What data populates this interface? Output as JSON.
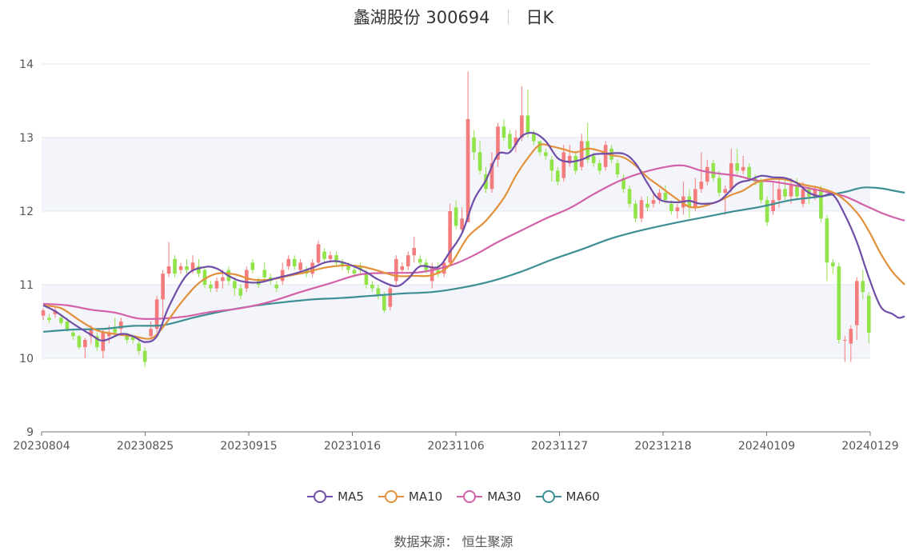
{
  "header": {
    "title": "蠡湖股份 300694",
    "subtitle": "日K"
  },
  "source": "数据来源： 恒生聚源",
  "colors": {
    "up": "#f47c7c",
    "down": "#91e34a",
    "grid": "#e0e6f1",
    "band": "#f4f5fb"
  },
  "chart_data": {
    "type": "candlestick",
    "y_ticks": [
      "9",
      "10",
      "11",
      "12",
      "13",
      "14"
    ],
    "ylim": [
      9,
      14
    ],
    "x_ticks": [
      "20230804",
      "20230825",
      "20230915",
      "20231016",
      "20231106",
      "20231127",
      "20231218",
      "20240109",
      "20240129"
    ],
    "legend": [
      {
        "name": "MA5",
        "color": "#6f4ea8"
      },
      {
        "name": "MA10",
        "color": "#e2913a"
      },
      {
        "name": "MA30",
        "color": "#d361a8"
      },
      {
        "name": "MA60",
        "color": "#3d8f93"
      }
    ],
    "candles": [
      [
        10.58,
        10.65,
        10.52,
        10.68
      ],
      [
        10.55,
        10.52,
        10.48,
        10.6
      ],
      [
        10.6,
        10.65,
        10.55,
        10.7
      ],
      [
        10.55,
        10.48,
        10.45,
        10.6
      ],
      [
        10.5,
        10.4,
        10.36,
        10.55
      ],
      [
        10.35,
        10.3,
        10.25,
        10.4
      ],
      [
        10.3,
        10.15,
        10.12,
        10.32
      ],
      [
        10.15,
        10.25,
        10.0,
        10.28
      ],
      [
        10.3,
        10.4,
        10.2,
        10.45
      ],
      [
        10.3,
        10.15,
        10.1,
        10.35
      ],
      [
        10.1,
        10.35,
        10.0,
        10.4
      ],
      [
        10.3,
        10.35,
        10.2,
        10.45
      ],
      [
        10.4,
        10.35,
        10.3,
        10.55
      ],
      [
        10.4,
        10.5,
        10.3,
        10.55
      ],
      [
        10.3,
        10.25,
        10.2,
        10.35
      ],
      [
        10.3,
        10.25,
        10.2,
        10.32
      ],
      [
        10.2,
        10.1,
        10.05,
        10.25
      ],
      [
        10.1,
        9.95,
        9.88,
        10.15
      ],
      [
        10.3,
        10.4,
        10.25,
        10.5
      ],
      [
        10.4,
        10.8,
        10.35,
        10.85
      ],
      [
        10.8,
        11.15,
        10.55,
        11.2
      ],
      [
        11.15,
        11.25,
        11.1,
        11.58
      ],
      [
        11.35,
        11.15,
        11.1,
        11.4
      ],
      [
        11.2,
        11.25,
        11.15,
        11.3
      ],
      [
        11.25,
        11.2,
        11.15,
        11.35
      ],
      [
        11.2,
        11.3,
        11.15,
        11.4
      ],
      [
        11.25,
        11.15,
        11.1,
        11.35
      ],
      [
        11.2,
        11.0,
        10.95,
        11.25
      ],
      [
        11.0,
        10.95,
        10.9,
        11.05
      ],
      [
        10.95,
        11.05,
        10.9,
        11.1
      ],
      [
        11.05,
        11.1,
        10.95,
        11.2
      ],
      [
        11.2,
        11.05,
        11.0,
        11.25
      ],
      [
        11.05,
        10.95,
        10.85,
        11.1
      ],
      [
        10.95,
        10.85,
        10.8,
        11.0
      ],
      [
        10.95,
        11.2,
        10.9,
        11.25
      ],
      [
        11.3,
        11.2,
        11.15,
        11.35
      ],
      [
        11.05,
        11.0,
        10.95,
        11.1
      ],
      [
        11.2,
        11.1,
        11.05,
        11.3
      ],
      [
        11.1,
        11.05,
        11.0,
        11.15
      ],
      [
        11.0,
        10.95,
        10.9,
        11.05
      ],
      [
        11.05,
        11.2,
        11.0,
        11.3
      ],
      [
        11.25,
        11.35,
        11.2,
        11.4
      ],
      [
        11.35,
        11.25,
        11.2,
        11.4
      ],
      [
        11.2,
        11.3,
        11.15,
        11.35
      ],
      [
        11.2,
        11.15,
        11.1,
        11.25
      ],
      [
        11.15,
        11.3,
        11.1,
        11.35
      ],
      [
        11.3,
        11.55,
        11.25,
        11.6
      ],
      [
        11.45,
        11.35,
        11.3,
        11.5
      ],
      [
        11.35,
        11.4,
        11.3,
        11.45
      ],
      [
        11.4,
        11.3,
        11.25,
        11.45
      ],
      [
        11.3,
        11.25,
        11.2,
        11.35
      ],
      [
        11.25,
        11.2,
        11.15,
        11.3
      ],
      [
        11.2,
        11.15,
        11.1,
        11.25
      ],
      [
        11.25,
        11.2,
        11.15,
        11.3
      ],
      [
        11.15,
        11.0,
        10.95,
        11.2
      ],
      [
        11.0,
        10.95,
        10.9,
        11.05
      ],
      [
        10.95,
        10.85,
        10.8,
        11.0
      ],
      [
        10.85,
        10.65,
        10.62,
        10.9
      ],
      [
        10.7,
        10.95,
        10.65,
        11.0
      ],
      [
        11.05,
        11.35,
        11.0,
        11.4
      ],
      [
        11.2,
        11.25,
        11.15,
        11.3
      ],
      [
        11.25,
        11.4,
        11.2,
        11.45
      ],
      [
        11.4,
        11.5,
        11.3,
        11.65
      ],
      [
        11.35,
        11.3,
        11.25,
        11.4
      ],
      [
        11.3,
        11.2,
        11.15,
        11.35
      ],
      [
        11.05,
        11.25,
        10.95,
        11.3
      ],
      [
        11.2,
        11.15,
        11.1,
        11.3
      ],
      [
        11.15,
        11.3,
        11.1,
        11.35
      ],
      [
        11.3,
        12.0,
        11.25,
        12.1
      ],
      [
        12.05,
        11.8,
        11.75,
        12.15
      ],
      [
        11.75,
        11.9,
        11.7,
        12.05
      ],
      [
        11.85,
        13.25,
        11.85,
        13.9
      ],
      [
        13.0,
        12.8,
        12.7,
        13.1
      ],
      [
        12.8,
        12.55,
        12.5,
        12.95
      ],
      [
        12.5,
        12.3,
        12.25,
        12.6
      ],
      [
        12.3,
        12.65,
        12.25,
        12.8
      ],
      [
        12.7,
        13.15,
        12.6,
        13.2
      ],
      [
        13.15,
        13.0,
        12.95,
        13.25
      ],
      [
        13.05,
        12.85,
        12.8,
        13.1
      ],
      [
        12.9,
        13.0,
        12.8,
        13.1
      ],
      [
        13.0,
        13.3,
        12.95,
        13.7
      ],
      [
        13.3,
        13.05,
        13.0,
        13.65
      ],
      [
        13.05,
        12.95,
        12.9,
        13.1
      ],
      [
        12.95,
        12.8,
        12.75,
        12.95
      ],
      [
        12.8,
        12.75,
        12.7,
        12.85
      ],
      [
        12.7,
        12.55,
        12.4,
        12.75
      ],
      [
        12.55,
        12.4,
        12.35,
        12.6
      ],
      [
        12.45,
        12.8,
        12.4,
        12.9
      ],
      [
        12.65,
        12.75,
        12.6,
        12.9
      ],
      [
        12.75,
        12.55,
        12.5,
        12.8
      ],
      [
        12.6,
        12.95,
        12.55,
        13.05
      ],
      [
        12.95,
        12.7,
        12.65,
        13.2
      ],
      [
        12.75,
        12.65,
        12.6,
        12.8
      ],
      [
        12.65,
        12.55,
        12.5,
        12.7
      ],
      [
        12.6,
        12.9,
        12.55,
        12.95
      ],
      [
        12.85,
        12.7,
        12.65,
        12.9
      ],
      [
        12.65,
        12.5,
        12.45,
        12.7
      ],
      [
        12.45,
        12.3,
        12.25,
        12.5
      ],
      [
        12.3,
        12.1,
        12.05,
        12.35
      ],
      [
        12.1,
        11.9,
        11.85,
        12.15
      ],
      [
        11.9,
        12.15,
        11.85,
        12.2
      ],
      [
        12.1,
        12.05,
        12.0,
        12.2
      ],
      [
        12.1,
        12.15,
        12.05,
        12.25
      ],
      [
        12.15,
        12.25,
        12.1,
        12.3
      ],
      [
        12.25,
        12.15,
        12.1,
        12.35
      ],
      [
        12.1,
        12.0,
        11.95,
        12.15
      ],
      [
        12.0,
        12.05,
        11.9,
        12.1
      ],
      [
        12.05,
        12.2,
        11.95,
        12.4
      ],
      [
        12.2,
        12.05,
        11.9,
        12.3
      ],
      [
        12.05,
        12.3,
        12.0,
        12.45
      ],
      [
        12.3,
        12.4,
        12.25,
        12.8
      ],
      [
        12.4,
        12.6,
        12.35,
        12.7
      ],
      [
        12.65,
        12.45,
        12.4,
        12.7
      ],
      [
        12.45,
        12.25,
        12.2,
        12.55
      ],
      [
        12.25,
        12.3,
        11.95,
        12.35
      ],
      [
        12.3,
        12.65,
        12.25,
        12.85
      ],
      [
        12.65,
        12.55,
        12.5,
        12.85
      ],
      [
        12.55,
        12.6,
        12.5,
        12.75
      ],
      [
        12.6,
        12.45,
        12.4,
        12.65
      ],
      [
        12.45,
        12.4,
        12.35,
        12.5
      ],
      [
        12.4,
        12.15,
        12.1,
        12.45
      ],
      [
        12.15,
        11.85,
        11.8,
        12.2
      ],
      [
        12.0,
        12.15,
        11.95,
        12.4
      ],
      [
        12.15,
        12.3,
        12.05,
        12.45
      ],
      [
        12.3,
        12.2,
        12.15,
        12.45
      ],
      [
        12.2,
        12.35,
        12.1,
        12.45
      ],
      [
        12.35,
        12.2,
        12.15,
        12.45
      ],
      [
        12.1,
        12.3,
        12.05,
        12.4
      ],
      [
        12.3,
        12.2,
        12.1,
        12.35
      ],
      [
        12.2,
        12.3,
        12.15,
        12.35
      ],
      [
        12.3,
        11.9,
        11.85,
        12.35
      ],
      [
        11.9,
        11.3,
        11.05,
        11.95
      ],
      [
        11.3,
        11.25,
        11.15,
        11.35
      ],
      [
        11.25,
        10.25,
        10.2,
        11.3
      ],
      [
        10.25,
        10.25,
        9.95,
        10.3
      ],
      [
        10.2,
        10.4,
        9.95,
        10.45
      ],
      [
        10.45,
        11.05,
        10.25,
        11.1
      ],
      [
        11.05,
        10.9,
        10.8,
        11.2
      ],
      [
        10.85,
        10.35,
        10.2,
        10.9
      ]
    ],
    "ma5": [
      [
        0,
        10.72
      ],
      [
        2,
        10.64
      ],
      [
        5,
        10.47
      ],
      [
        8,
        10.32
      ],
      [
        10,
        10.24
      ],
      [
        13,
        10.33
      ],
      [
        15,
        10.3
      ],
      [
        17,
        10.22
      ],
      [
        19,
        10.3
      ],
      [
        21,
        10.7
      ],
      [
        24,
        11.13
      ],
      [
        27,
        11.24
      ],
      [
        29,
        11.22
      ],
      [
        31,
        11.12
      ],
      [
        33,
        11.05
      ],
      [
        36,
        11.03
      ],
      [
        39,
        11.09
      ],
      [
        42,
        11.15
      ],
      [
        45,
        11.23
      ],
      [
        47,
        11.3
      ],
      [
        49,
        11.32
      ],
      [
        51,
        11.28
      ],
      [
        54,
        11.17
      ],
      [
        56,
        11.07
      ],
      [
        59,
        10.98
      ],
      [
        61,
        11.08
      ],
      [
        63,
        11.25
      ],
      [
        66,
        11.24
      ],
      [
        68,
        11.45
      ],
      [
        70,
        11.7
      ],
      [
        72,
        12.15
      ],
      [
        74,
        12.42
      ],
      [
        76,
        12.77
      ],
      [
        78,
        12.8
      ],
      [
        80,
        13.02
      ],
      [
        82,
        13.06
      ],
      [
        84,
        12.95
      ],
      [
        86,
        12.72
      ],
      [
        88,
        12.67
      ],
      [
        90,
        12.7
      ],
      [
        92,
        12.77
      ],
      [
        94,
        12.78
      ],
      [
        97,
        12.78
      ],
      [
        99,
        12.65
      ],
      [
        101,
        12.38
      ],
      [
        103,
        12.16
      ],
      [
        106,
        12.12
      ],
      [
        108,
        12.14
      ],
      [
        110,
        12.1
      ],
      [
        113,
        12.14
      ],
      [
        116,
        12.37
      ],
      [
        118,
        12.42
      ],
      [
        120,
        12.48
      ],
      [
        122,
        12.46
      ],
      [
        124,
        12.45
      ],
      [
        126,
        12.38
      ],
      [
        128,
        12.25
      ],
      [
        130,
        12.2
      ],
      [
        132,
        12.22
      ],
      [
        134,
        11.95
      ],
      [
        136,
        11.58
      ],
      [
        138,
        11.1
      ],
      [
        140,
        10.7
      ],
      [
        142,
        10.6
      ],
      [
        143,
        10.55
      ],
      [
        144,
        10.57
      ]
    ],
    "ma10": [
      [
        0,
        10.72
      ],
      [
        3,
        10.68
      ],
      [
        6,
        10.52
      ],
      [
        9,
        10.38
      ],
      [
        12,
        10.33
      ],
      [
        15,
        10.3
      ],
      [
        18,
        10.27
      ],
      [
        20,
        10.42
      ],
      [
        23,
        10.75
      ],
      [
        26,
        11.02
      ],
      [
        29,
        11.15
      ],
      [
        32,
        11.14
      ],
      [
        35,
        11.07
      ],
      [
        38,
        11.07
      ],
      [
        41,
        11.12
      ],
      [
        44,
        11.17
      ],
      [
        47,
        11.23
      ],
      [
        50,
        11.26
      ],
      [
        53,
        11.25
      ],
      [
        56,
        11.19
      ],
      [
        59,
        11.12
      ],
      [
        62,
        11.12
      ],
      [
        65,
        11.13
      ],
      [
        68,
        11.27
      ],
      [
        71,
        11.65
      ],
      [
        74,
        11.87
      ],
      [
        77,
        12.18
      ],
      [
        79,
        12.48
      ],
      [
        81,
        12.72
      ],
      [
        83,
        12.9
      ],
      [
        85,
        12.88
      ],
      [
        87,
        12.84
      ],
      [
        89,
        12.8
      ],
      [
        91,
        12.85
      ],
      [
        93,
        12.82
      ],
      [
        95,
        12.76
      ],
      [
        97,
        12.73
      ],
      [
        99,
        12.62
      ],
      [
        101,
        12.46
      ],
      [
        103,
        12.34
      ],
      [
        106,
        12.16
      ],
      [
        108,
        12.06
      ],
      [
        110,
        12.06
      ],
      [
        113,
        12.14
      ],
      [
        115,
        12.22
      ],
      [
        117,
        12.28
      ],
      [
        119,
        12.38
      ],
      [
        121,
        12.43
      ],
      [
        124,
        12.43
      ],
      [
        127,
        12.36
      ],
      [
        130,
        12.31
      ],
      [
        133,
        12.21
      ],
      [
        136,
        11.98
      ],
      [
        138,
        11.73
      ],
      [
        140,
        11.42
      ],
      [
        142,
        11.17
      ],
      [
        144,
        11.0
      ]
    ],
    "ma30": [
      [
        0,
        10.74
      ],
      [
        4,
        10.72
      ],
      [
        8,
        10.66
      ],
      [
        12,
        10.62
      ],
      [
        16,
        10.54
      ],
      [
        20,
        10.54
      ],
      [
        24,
        10.57
      ],
      [
        28,
        10.63
      ],
      [
        33,
        10.68
      ],
      [
        38,
        10.77
      ],
      [
        43,
        10.9
      ],
      [
        48,
        11.02
      ],
      [
        53,
        11.14
      ],
      [
        58,
        11.16
      ],
      [
        63,
        11.17
      ],
      [
        68,
        11.26
      ],
      [
        72,
        11.4
      ],
      [
        76,
        11.58
      ],
      [
        80,
        11.74
      ],
      [
        84,
        11.9
      ],
      [
        88,
        12.04
      ],
      [
        92,
        12.23
      ],
      [
        96,
        12.4
      ],
      [
        100,
        12.52
      ],
      [
        104,
        12.6
      ],
      [
        107,
        12.62
      ],
      [
        110,
        12.55
      ],
      [
        113,
        12.51
      ],
      [
        116,
        12.48
      ],
      [
        119,
        12.42
      ],
      [
        122,
        12.4
      ],
      [
        125,
        12.36
      ],
      [
        128,
        12.31
      ],
      [
        131,
        12.26
      ],
      [
        134,
        12.2
      ],
      [
        137,
        12.09
      ],
      [
        140,
        11.98
      ],
      [
        142,
        11.92
      ],
      [
        144,
        11.87
      ]
    ],
    "ma60": [
      [
        0,
        10.36
      ],
      [
        5,
        10.39
      ],
      [
        10,
        10.4
      ],
      [
        15,
        10.44
      ],
      [
        20,
        10.45
      ],
      [
        25,
        10.55
      ],
      [
        30,
        10.64
      ],
      [
        35,
        10.71
      ],
      [
        40,
        10.76
      ],
      [
        45,
        10.8
      ],
      [
        50,
        10.82
      ],
      [
        55,
        10.85
      ],
      [
        60,
        10.88
      ],
      [
        65,
        10.9
      ],
      [
        70,
        10.96
      ],
      [
        75,
        11.05
      ],
      [
        80,
        11.18
      ],
      [
        85,
        11.34
      ],
      [
        90,
        11.48
      ],
      [
        95,
        11.63
      ],
      [
        100,
        11.74
      ],
      [
        105,
        11.83
      ],
      [
        110,
        11.91
      ],
      [
        115,
        11.99
      ],
      [
        120,
        12.06
      ],
      [
        125,
        12.15
      ],
      [
        130,
        12.2
      ],
      [
        134,
        12.26
      ],
      [
        137,
        12.32
      ],
      [
        140,
        12.31
      ],
      [
        142,
        12.28
      ],
      [
        144,
        12.25
      ]
    ]
  }
}
